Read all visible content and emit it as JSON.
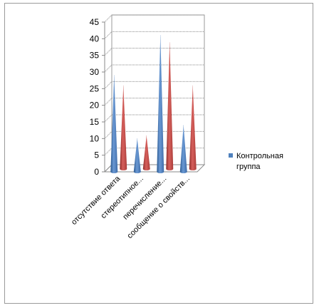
{
  "chart_data": {
    "type": "bar",
    "style": "3d-cone",
    "categories": [
      "отсутствие ответа",
      "стереотипное...",
      "перечисление...",
      "сообщение о свойств..."
    ],
    "series": [
      {
        "name": "Контрольная группа",
        "values": [
          29,
          10,
          41,
          14
        ],
        "color": "#4f81bd"
      },
      {
        "name": "",
        "values": [
          25,
          10,
          38,
          25
        ],
        "color": "#c0504d"
      }
    ],
    "yticks": [
      "0",
      "5",
      "10",
      "15",
      "20",
      "25",
      "30",
      "35",
      "40",
      "45"
    ],
    "ylim": [
      0,
      45
    ],
    "grid": true,
    "legend": {
      "position": "right",
      "entries": [
        "Контрольная",
        "группа"
      ]
    },
    "title": "",
    "xlabel": "",
    "ylabel": ""
  }
}
